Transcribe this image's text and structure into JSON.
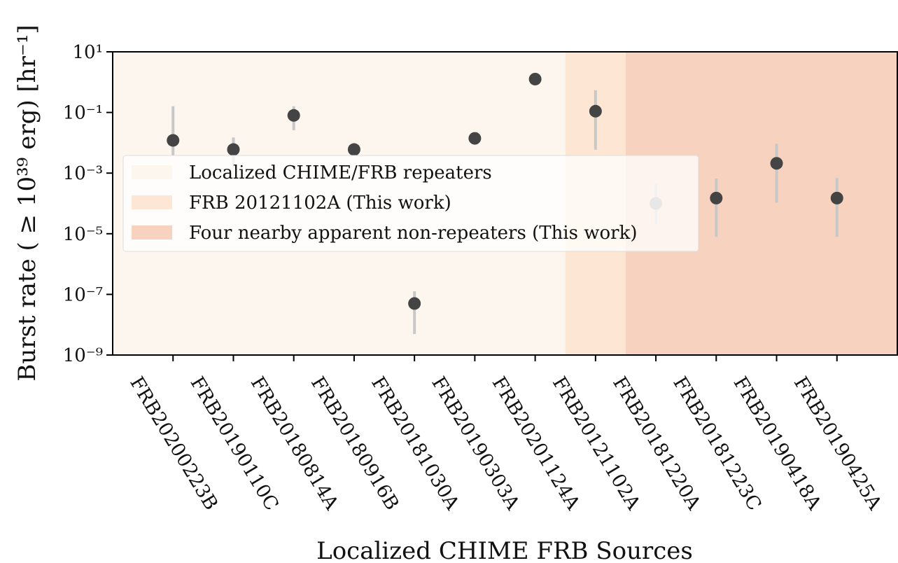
{
  "chart_data": {
    "type": "scatter",
    "ylabel": "Burst rate ( ≥ 10³⁹ erg) [hr⁻¹]",
    "xlabel": "Localized CHIME FRB Sources",
    "categories": [
      "FRB20200223B",
      "FRB20190110C",
      "FRB20180814A",
      "FRB20180916B",
      "FRB20181030A",
      "FRB20190303A",
      "FRB20201124A",
      "FRB20121102A",
      "FRB20181220A",
      "FRB20181223C",
      "FRB20190418A",
      "FRB20190425A"
    ],
    "values": [
      0.012,
      0.006,
      0.08,
      0.006,
      5e-08,
      0.014,
      1.26,
      0.11,
      0.0001,
      0.00015,
      0.0021,
      0.00015
    ],
    "err_low": [
      0.0038,
      0.0015,
      0.026,
      null,
      4.9e-09,
      null,
      null,
      0.0059,
      2.1e-05,
      7.9e-06,
      0.000107,
      7.9e-06
    ],
    "err_high": [
      0.16,
      0.015,
      0.16,
      null,
      1.26e-07,
      null,
      null,
      0.54,
      0.00046,
      0.00066,
      0.0093,
      0.00069
    ],
    "point_colors": [
      "#444444",
      "#444444",
      "#444444",
      "#444444",
      "#444444",
      "#444444",
      "#444444",
      "#444444",
      "#a0a0a0",
      "#444444",
      "#444444",
      "#444444"
    ],
    "error_color": "#c8c8c8",
    "xlim": [
      -1,
      12
    ],
    "ylim": [
      1e-09,
      10
    ],
    "log_y": true,
    "yticks": [
      {
        "value": 10,
        "label": "10¹"
      },
      {
        "value": 0.1,
        "label": "10⁻¹"
      },
      {
        "value": 0.001,
        "label": "10⁻³"
      },
      {
        "value": 1e-05,
        "label": "10⁻⁵"
      },
      {
        "value": 1e-07,
        "label": "10⁻⁷"
      },
      {
        "value": 1e-09,
        "label": "10⁻⁹"
      }
    ],
    "regions": [
      {
        "name": "Localized CHIME/FRB repeaters",
        "color": "#fdf6ef",
        "from": -1,
        "to": 6.5
      },
      {
        "name": "FRB 20121102A (This work)",
        "color": "#fde6d3",
        "from": 6.5,
        "to": 7.5
      },
      {
        "name": "Four nearby apparent non-repeaters (This work)",
        "color": "#f7d3bf",
        "from": 7.5,
        "to": 12
      }
    ],
    "legend": "center left"
  }
}
